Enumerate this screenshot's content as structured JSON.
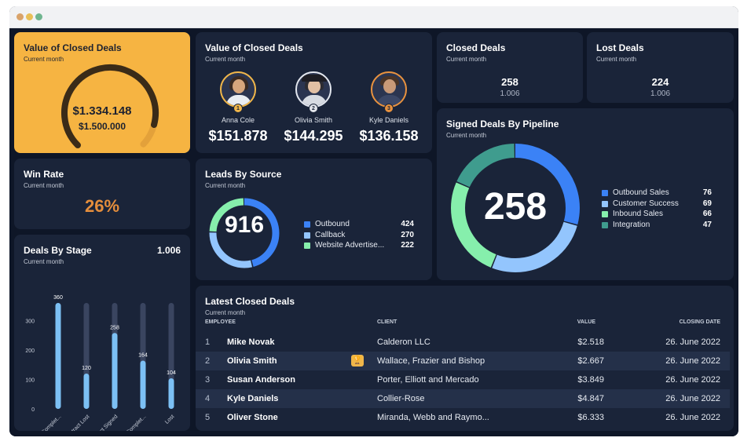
{
  "colors": {
    "background": "#0e1627",
    "card": "#1a2439",
    "accent": "#f6b442",
    "orange": "#e58e3c",
    "blue": "#3b82f6",
    "light_blue": "#93c5fd",
    "green": "#86efac",
    "teal": "#3f9c8e"
  },
  "window": {
    "buttons": [
      "close",
      "minimize",
      "maximize"
    ]
  },
  "value_gauge": {
    "title": "Value of Closed Deals",
    "subtitle": "Current month",
    "value": "$1.334.148",
    "target": "$1.500.000",
    "progress": 0.889
  },
  "top_sellers": {
    "title": "Value of Closed Deals",
    "subtitle": "Current month",
    "people": [
      {
        "name": "Anna Cole",
        "value": "$151.878",
        "rank": "1",
        "avatar": "woman-avatar"
      },
      {
        "name": "Olivia Smith",
        "value": "$144.295",
        "rank": "2",
        "avatar": "woman-hat-avatar"
      },
      {
        "name": "Kyle Daniels",
        "value": "$136.158",
        "rank": "3",
        "avatar": "man-avatar"
      }
    ]
  },
  "closed_deals": {
    "title": "Closed Deals",
    "subtitle": "Current month",
    "value": "258",
    "target": "1.006"
  },
  "lost_deals": {
    "title": "Lost Deals",
    "subtitle": "Current month",
    "value": "224",
    "target": "1.006"
  },
  "win_rate": {
    "title": "Win Rate",
    "subtitle": "Current month",
    "value": "26%"
  },
  "leads_by_source": {
    "title": "Leads By Source",
    "subtitle": "Current month",
    "total": "916",
    "items": [
      {
        "label": "Outbound",
        "value": "424",
        "color": "#3b82f6"
      },
      {
        "label": "Callback",
        "value": "270",
        "color": "#93c5fd"
      },
      {
        "label": "Website Advertise...",
        "value": "222",
        "color": "#86efac"
      }
    ]
  },
  "signed_by_pipeline": {
    "title": "Signed Deals By Pipeline",
    "subtitle": "Current month",
    "total": "258",
    "items": [
      {
        "label": "Outbound Sales",
        "value": "76",
        "color": "#3b82f6"
      },
      {
        "label": "Customer Success",
        "value": "69",
        "color": "#93c5fd"
      },
      {
        "label": "Inbound Sales",
        "value": "66",
        "color": "#86efac"
      },
      {
        "label": "Integration",
        "value": "47",
        "color": "#3f9c8e"
      }
    ]
  },
  "deals_by_stage": {
    "title": "Deals By Stage",
    "subtitle": "Current month",
    "total": "1.006"
  },
  "chart_data": {
    "type": "bar",
    "title": "Deals By Stage",
    "categories": [
      "Auction-Complet...",
      "Contract Lost",
      "Contract Signed",
      "Followup Complet...",
      "Lost"
    ],
    "values": [
      360,
      120,
      258,
      164,
      104
    ],
    "ylim": [
      0,
      360
    ],
    "yticks": [
      0,
      100,
      200,
      300
    ],
    "grid": false
  },
  "latest_deals": {
    "title": "Latest Closed Deals",
    "subtitle": "Current month",
    "columns": {
      "employee": "EMPLOYEE",
      "client": "CLIENT",
      "value": "VALUE",
      "date": "CLOSING DATE"
    },
    "rows": [
      {
        "num": "1",
        "employee": "Mike Novak",
        "client": "Calderon LLC",
        "value": "$2.518",
        "date": "26. June 2022"
      },
      {
        "num": "2",
        "employee": "Olivia Smith",
        "client": "Wallace, Frazier and Bishop",
        "value": "$2.667",
        "date": "26. June 2022",
        "badge": "trophy-icon"
      },
      {
        "num": "3",
        "employee": "Susan Anderson",
        "client": "Porter, Elliott and Mercado",
        "value": "$3.849",
        "date": "26. June 2022"
      },
      {
        "num": "4",
        "employee": "Kyle Daniels",
        "client": "Collier-Rose",
        "value": "$4.847",
        "date": "26. June 2022"
      },
      {
        "num": "5",
        "employee": "Oliver Stone",
        "client": "Miranda, Webb and Raymo...",
        "value": "$6.333",
        "date": "26. June 2022"
      }
    ]
  }
}
